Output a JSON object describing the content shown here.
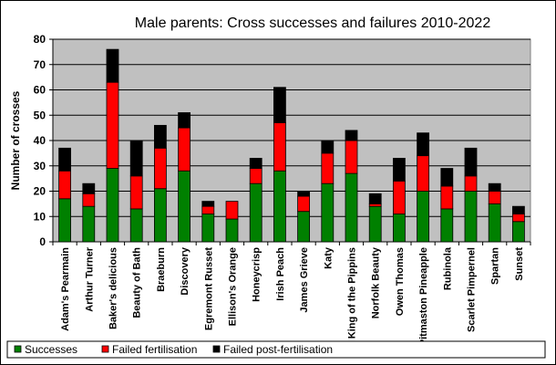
{
  "chart_data": {
    "type": "bar",
    "stacked": true,
    "title": "Male parents: Cross successes and failures 2010-2022",
    "xlabel": "",
    "ylabel": "Number of crosses",
    "ylim": [
      0,
      80
    ],
    "yticks": [
      0,
      10,
      20,
      30,
      40,
      50,
      60,
      70,
      80
    ],
    "grid": true,
    "legend_position": "bottom",
    "categories": [
      "Adam's Pearmain",
      "Arthur Turner",
      "Baker's delicious",
      "Beauty of Bath",
      "Braeburn",
      "Discovery",
      "Egremont Russet",
      "Ellison's Orange",
      "Honeycrisp",
      "Irish Peach",
      "James Grieve",
      "Katy",
      "King of the Pippins",
      "Norfolk Beauty",
      "Owen Thomas",
      "Pitmaston Pineapple",
      "Rubinola",
      "Scarlet Pimpernel",
      "Spartan",
      "Sunset"
    ],
    "series": [
      {
        "name": "Successes",
        "color": "#008000",
        "values": [
          17,
          14,
          29,
          13,
          21,
          28,
          11,
          9,
          23,
          28,
          12,
          23,
          27,
          14,
          11,
          20,
          13,
          20,
          15,
          8
        ]
      },
      {
        "name": "Failed fertilisation",
        "color": "#ff0000",
        "values": [
          11,
          5,
          34,
          13,
          16,
          17,
          3,
          7,
          6,
          19,
          6,
          12,
          13,
          1,
          13,
          14,
          9,
          6,
          5,
          3
        ]
      },
      {
        "name": "Failed post-fertilisation",
        "color": "#000000",
        "values": [
          9,
          4,
          13,
          14,
          9,
          6,
          2,
          0,
          4,
          14,
          2,
          5,
          4,
          4,
          9,
          9,
          7,
          11,
          3,
          3
        ]
      }
    ],
    "plot_background": "#c0c0c0"
  }
}
